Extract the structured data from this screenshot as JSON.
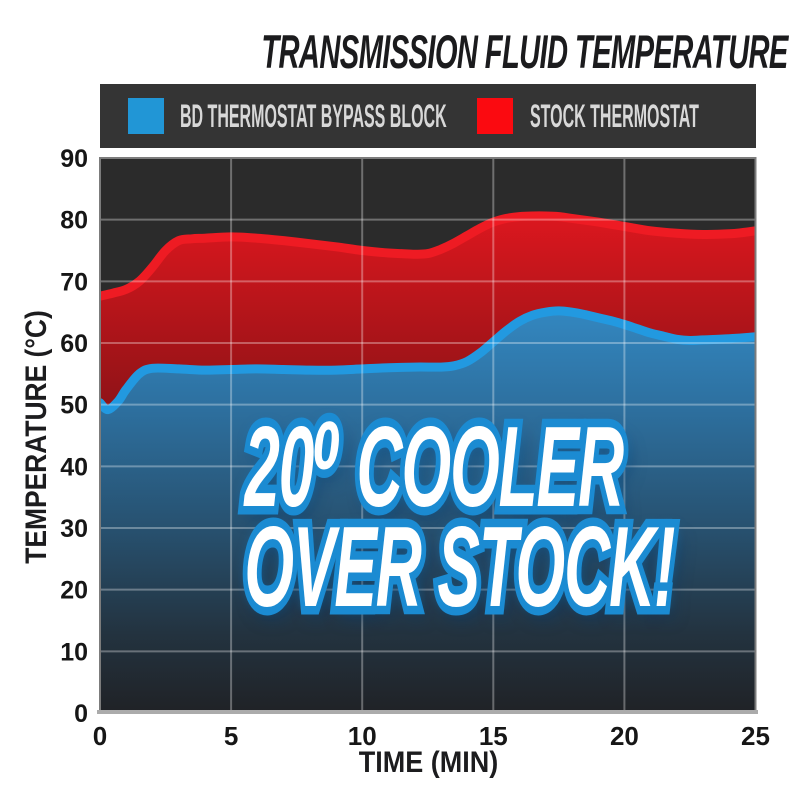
{
  "title": "TRANSMISSION FLUID TEMPERATURE",
  "legend": {
    "items": [
      {
        "label": "BD THERMOSTAT BYPASS BLOCK",
        "color": "#2196d6"
      },
      {
        "label": "STOCK THERMOSTAT",
        "color": "#fb0a10"
      }
    ]
  },
  "annotation": {
    "line1": "20⁰ COOLER",
    "line2": "OVER STOCK!"
  },
  "axes": {
    "x_title": "TIME (MIN)",
    "y_title": "TEMPERATURE (°C)"
  },
  "chart_data": {
    "type": "area",
    "title": "TRANSMISSION FLUID TEMPERATURE",
    "xlabel": "TIME (MIN)",
    "ylabel": "TEMPERATURE (°C)",
    "xlim": [
      0,
      25
    ],
    "ylim": [
      0,
      90
    ],
    "x_ticks": [
      0,
      5,
      10,
      15,
      20,
      25
    ],
    "y_ticks": [
      0,
      10,
      20,
      30,
      40,
      50,
      60,
      70,
      80,
      90
    ],
    "grid": true,
    "grid_color": "rgba(255,255,255,0.32)",
    "plot_bg": "#2b2b2b",
    "border_color": "#7c7c7c",
    "baseline_color": "#ababab",
    "legend_position": "top",
    "annotation": "20⁰ COOLER OVER STOCK!",
    "series": [
      {
        "name": "STOCK THERMOSTAT",
        "line_color": "#ee1b23",
        "fill_stops": [
          [
            "0%",
            "#da171e"
          ],
          [
            "25%",
            "#a81419"
          ],
          [
            "45%",
            "#821216"
          ],
          [
            "70%",
            "#5a1013"
          ],
          [
            "100%",
            "#420c0f"
          ]
        ],
        "fill_y_range": [
          220,
          713
        ],
        "x": [
          0,
          0.5,
          1,
          1.5,
          2,
          2.5,
          3,
          3.5,
          4,
          5,
          6,
          7,
          8,
          9,
          10,
          11,
          11.5,
          12,
          12.5,
          13,
          13.5,
          14,
          14.5,
          15,
          15.5,
          16,
          16.5,
          17,
          17.5,
          18,
          19,
          20,
          21,
          22,
          23,
          24,
          24.5,
          25
        ],
        "values": [
          67.6,
          68.1,
          68.7,
          70.0,
          72.3,
          75.0,
          76.6,
          76.9,
          77.0,
          77.2,
          77.0,
          76.6,
          76.1,
          75.6,
          75.0,
          74.6,
          74.5,
          74.4,
          74.5,
          75.2,
          76.2,
          77.4,
          78.6,
          79.6,
          80.2,
          80.5,
          80.6,
          80.6,
          80.5,
          80.2,
          79.6,
          78.9,
          78.2,
          77.8,
          77.6,
          77.7,
          77.9,
          78.2
        ]
      },
      {
        "name": "BD THERMOSTAT BYPASS BLOCK",
        "line_color": "#2299e0",
        "fill_stops": [
          [
            "0%",
            "#3387c0"
          ],
          [
            "25%",
            "#2d6f9e"
          ],
          [
            "55%",
            "#27506e"
          ],
          [
            "80%",
            "#233340"
          ],
          [
            "100%",
            "#202226"
          ]
        ],
        "fill_y_range": [
          310,
          713
        ],
        "x": [
          0,
          0.3,
          0.7,
          1,
          1.5,
          2,
          3,
          4,
          5,
          6,
          7,
          8,
          9,
          10,
          11,
          12,
          13,
          13.5,
          14,
          14.5,
          15,
          15.5,
          16,
          16.5,
          17,
          17.5,
          18,
          18.5,
          19,
          19.5,
          20,
          20.5,
          21,
          21.5,
          22,
          22.5,
          23,
          24,
          25
        ],
        "values": [
          50.3,
          49.2,
          50.6,
          52.5,
          55.0,
          55.9,
          55.8,
          55.6,
          55.7,
          55.8,
          55.7,
          55.6,
          55.6,
          55.8,
          56.0,
          56.1,
          56.1,
          56.3,
          57.0,
          58.4,
          60.2,
          62.0,
          63.5,
          64.5,
          65.0,
          65.2,
          65.0,
          64.6,
          64.1,
          63.6,
          63.0,
          62.3,
          61.6,
          61.1,
          60.6,
          60.4,
          60.5,
          60.7,
          61.0
        ]
      }
    ]
  }
}
